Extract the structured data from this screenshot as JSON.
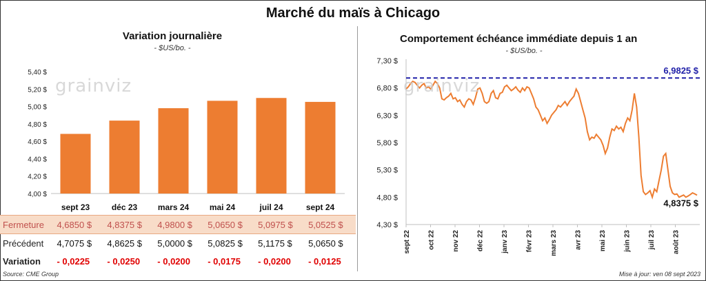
{
  "title": "Marché du maïs à Chicago",
  "left_panel": {
    "title": "Variation  journalière",
    "subtitle": "- $US/bo. -"
  },
  "right_panel": {
    "title": "Comportement  échéance immédiate depuis 1 an",
    "subtitle": "- $US/bo. -",
    "max_label": "6,9825 $",
    "last_label": "4,8375 $"
  },
  "watermark": "grainviz",
  "table": {
    "rows": [
      {
        "label": "Fermeture",
        "values": [
          "4,6850  $",
          "4,8375  $",
          "4,9800  $",
          "5,0650  $",
          "5,0975  $",
          "5,0525  $"
        ]
      },
      {
        "label": "Précédent",
        "values": [
          "4,7075  $",
          "4,8625  $",
          "5,0000  $",
          "5,0825  $",
          "5,1175  $",
          "5,0650  $"
        ]
      },
      {
        "label": "Variation",
        "values": [
          "- 0,0225",
          "- 0,0250",
          "- 0,0200",
          "- 0,0175",
          "- 0,0200",
          "- 0,0125"
        ]
      }
    ]
  },
  "footer": {
    "source": "Source: CME Group",
    "updated": "Mise à jour: ven 08 sept 2023"
  },
  "chart_data": [
    {
      "type": "bar",
      "title": "Variation  journalière",
      "subtitle": "- $US/bo. -",
      "categories": [
        "sept 23",
        "déc 23",
        "mars 24",
        "mai 24",
        "juil 24",
        "sept 24"
      ],
      "values": [
        4.685,
        4.8375,
        4.98,
        5.065,
        5.0975,
        5.0525
      ],
      "ylim": [
        4.0,
        5.4
      ],
      "yticks": [
        "4,00 $",
        "4,20 $",
        "4,40 $",
        "4,60 $",
        "4,80 $",
        "5,00 $",
        "5,20 $",
        "5,40 $"
      ],
      "color": "#ed7d31",
      "grid": false
    },
    {
      "type": "line",
      "title": "Comportement  échéance immédiate depuis 1 an",
      "subtitle": "- $US/bo. -",
      "ylim": [
        4.3,
        7.3
      ],
      "yticks": [
        "4,30 $",
        "4,80 $",
        "5,30 $",
        "5,80 $",
        "6,30 $",
        "6,80 $",
        "7,30 $"
      ],
      "xticks": [
        "sept 22",
        "oct 22",
        "nov 22",
        "déc 22",
        "janv 23",
        "févr 23",
        "mars 23",
        "avr 23",
        "mai 23",
        "juin 23",
        "juil 23",
        "août 23"
      ],
      "reference_line": 6.9825,
      "color": "#ed7d31",
      "reference_color": "#1f1fa8",
      "values": [
        6.78,
        6.82,
        6.88,
        6.92,
        6.9,
        6.85,
        6.8,
        6.85,
        6.88,
        6.8,
        6.82,
        6.78,
        6.85,
        6.92,
        6.88,
        6.8,
        6.6,
        6.58,
        6.62,
        6.65,
        6.7,
        6.6,
        6.62,
        6.55,
        6.58,
        6.5,
        6.45,
        6.55,
        6.6,
        6.58,
        6.5,
        6.62,
        6.78,
        6.8,
        6.7,
        6.55,
        6.52,
        6.55,
        6.7,
        6.75,
        6.62,
        6.6,
        6.7,
        6.72,
        6.82,
        6.85,
        6.8,
        6.75,
        6.78,
        6.82,
        6.76,
        6.72,
        6.8,
        6.75,
        6.82,
        6.8,
        6.7,
        6.6,
        6.45,
        6.4,
        6.3,
        6.2,
        6.25,
        6.15,
        6.22,
        6.3,
        6.35,
        6.4,
        6.48,
        6.45,
        6.5,
        6.55,
        6.48,
        6.55,
        6.6,
        6.65,
        6.78,
        6.7,
        6.55,
        6.4,
        6.25,
        6.0,
        5.85,
        5.9,
        5.88,
        5.95,
        5.9,
        5.85,
        5.75,
        5.6,
        5.7,
        5.9,
        6.05,
        6.02,
        6.1,
        6.05,
        6.08,
        6.0,
        6.15,
        6.25,
        6.2,
        6.4,
        6.7,
        6.45,
        5.9,
        5.2,
        4.9,
        4.85,
        4.88,
        4.92,
        4.8,
        4.95,
        4.9,
        5.1,
        5.3,
        5.55,
        5.6,
        5.3,
        5.0,
        4.88,
        4.85,
        4.86,
        4.8,
        4.82,
        4.84,
        4.8,
        4.82,
        4.85,
        4.88,
        4.86,
        4.8375
      ]
    }
  ]
}
